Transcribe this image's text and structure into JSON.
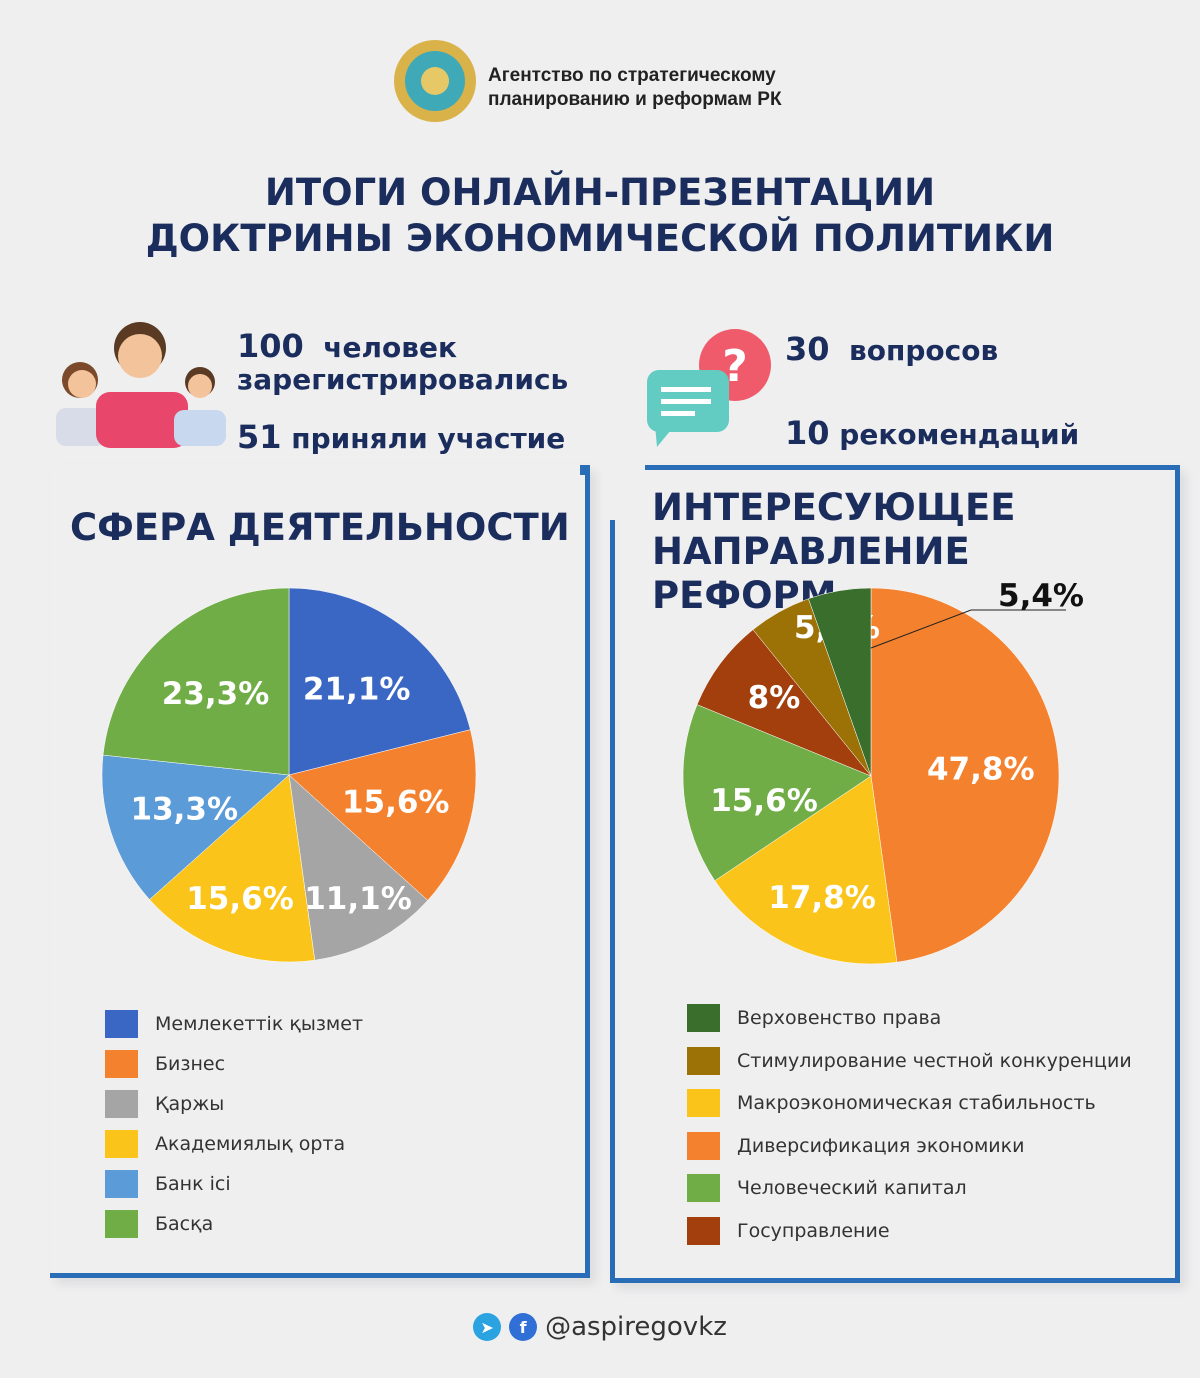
{
  "header": {
    "org_line1": "Агентство по стратегическому",
    "org_line2": "планированию и реформам РК",
    "title_line1": "ИТОГИ ОНЛАЙН-ПРЕЗЕНТАЦИИ",
    "title_line2": "ДОКТРИНЫ ЭКОНОМИЧЕСКОЙ ПОЛИТИКИ",
    "emblem_icon": "kazakhstan-emblem"
  },
  "stats": {
    "registered_num": "100",
    "registered_label1": "человек",
    "registered_label2": "зарегистрировались",
    "participated_num": "51",
    "participated_label": "приняли участие",
    "questions_num": "30",
    "questions_label": "вопросов",
    "recommendations_num": "10",
    "recommendations_label": "рекомендаций"
  },
  "chart_data": [
    {
      "type": "pie",
      "title": "СФЕРА ДЕЯТЕЛЬНОСТИ",
      "categories": [
        "Мемлекеттік қызмет",
        "Бизнес",
        "Қаржы",
        "Академиялық орта",
        "Банк ісі",
        "Басқа"
      ],
      "values": [
        21.1,
        15.6,
        11.1,
        15.6,
        13.3,
        23.3
      ],
      "labels": [
        "21,1%",
        "15,6%",
        "11,1%",
        "15,6%",
        "13,3%",
        "23,3%"
      ],
      "colors": [
        "#3a67c4",
        "#f4812e",
        "#a5a5a5",
        "#fbc41a",
        "#5b9bd8",
        "#70ad46"
      ],
      "legend": "bottom"
    },
    {
      "type": "pie",
      "title": "ИНТЕРЕСУЮЩЕЕ НАПРАВЛЕНИЕ РЕФОРМ",
      "categories": [
        "Диверсификация экономики",
        "Макроэкономическая стабильность",
        "Человеческий капитал",
        "Госуправление",
        "Стимулирование честной конкуренции",
        "Верховенство права"
      ],
      "values": [
        47.8,
        17.8,
        15.6,
        8,
        5.4,
        5.4
      ],
      "labels": [
        "47,8%",
        "17,8%",
        "15,6%",
        "8%",
        "5,4%",
        "5,4%"
      ],
      "colors": [
        "#f4812e",
        "#fbc41a",
        "#70ad46",
        "#a23f0c",
        "#9c7105",
        "#3a6e2c"
      ],
      "legend_order": [
        "Верховенство права",
        "Стимулирование честной конкуренции",
        "Макроэкономическая стабильность",
        "Диверсификация экономики",
        "Человеческий капитал",
        "Госуправление"
      ],
      "legend_colors": [
        "#3a6e2c",
        "#9c7105",
        "#fbc41a",
        "#f4812e",
        "#70ad46",
        "#a23f0c"
      ],
      "legend": "bottom"
    }
  ],
  "footer": {
    "handle": "@aspiregovkz",
    "icons": [
      "telegram-icon",
      "facebook-icon"
    ]
  }
}
